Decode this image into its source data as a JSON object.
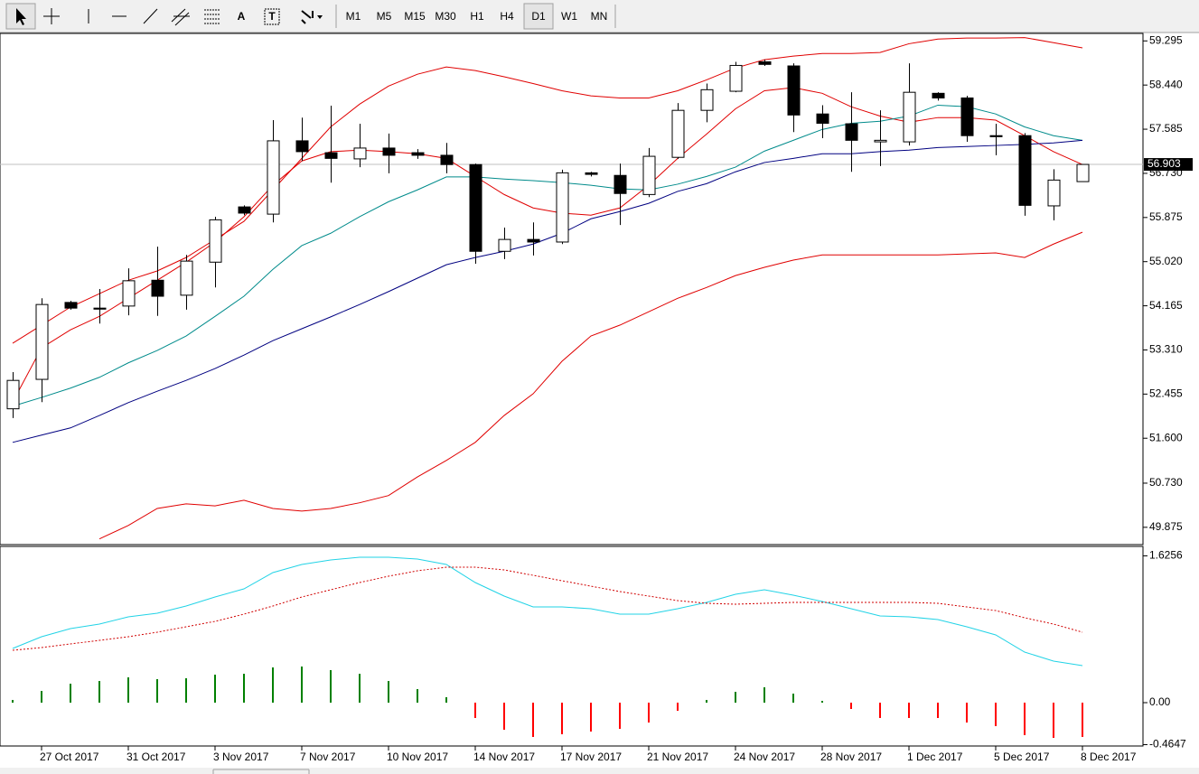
{
  "toolbar": {
    "text_tools": [
      "A",
      "T"
    ],
    "periods": [
      "M1",
      "M5",
      "M15",
      "M30",
      "H1",
      "H4",
      "D1",
      "W1",
      "MN"
    ],
    "active_period": "D1"
  },
  "chart_data": [
    {
      "type": "candlestick",
      "open": [
        52.17,
        52.74,
        54.23,
        54.12,
        54.16,
        54.66,
        54.37,
        55.01,
        56.08,
        55.94,
        57.36,
        57.13,
        57.01,
        57.22,
        57.13,
        57.08,
        56.9,
        55.22,
        55.45,
        55.4,
        56.74,
        56.69,
        56.32,
        57.04,
        57.95,
        58.32,
        58.89,
        58.81,
        57.88,
        57.69,
        57.34,
        57.34,
        58.28,
        58.19,
        57.46,
        57.46,
        56.1,
        56.57
      ],
      "high": [
        52.88,
        54.31,
        54.26,
        54.49,
        54.89,
        55.31,
        55.15,
        55.89,
        56.11,
        57.76,
        57.81,
        58.04,
        57.69,
        57.5,
        57.2,
        57.32,
        56.92,
        55.68,
        55.78,
        56.8,
        56.76,
        56.92,
        57.22,
        58.09,
        58.47,
        58.89,
        58.93,
        58.86,
        58.05,
        58.3,
        57.95,
        58.86,
        58.3,
        58.23,
        57.69,
        57.51,
        56.81,
        56.91
      ],
      "low": [
        51.99,
        52.3,
        54.09,
        53.82,
        53.98,
        53.97,
        54.09,
        54.52,
        55.92,
        55.78,
        56.97,
        56.55,
        56.85,
        56.73,
        57.01,
        56.73,
        54.98,
        55.07,
        55.14,
        55.36,
        56.67,
        55.73,
        56.27,
        57.01,
        57.72,
        58.3,
        58.81,
        57.53,
        57.41,
        56.76,
        56.87,
        57.27,
        58.14,
        57.34,
        57.08,
        55.91,
        55.82,
        56.57
      ],
      "close": [
        52.72,
        54.19,
        54.12,
        54.1,
        54.65,
        54.35,
        55.03,
        55.83,
        55.96,
        57.36,
        57.15,
        57.02,
        57.22,
        57.08,
        57.08,
        56.9,
        55.22,
        55.45,
        55.4,
        56.74,
        56.71,
        56.34,
        57.06,
        57.95,
        58.35,
        58.82,
        58.84,
        57.86,
        57.7,
        57.37,
        57.37,
        58.3,
        58.19,
        57.46,
        57.44,
        56.11,
        56.6,
        56.903
      ],
      "up_color": "#ffffff",
      "down_color": "#000000",
      "edge_color": "#000000",
      "overlays": [
        {
          "color": "#e00000",
          "values": [
            53.44,
            53.79,
            54.14,
            54.4,
            54.66,
            54.84,
            55.1,
            55.45,
            55.8,
            56.41,
            57.02,
            57.63,
            58.07,
            58.42,
            58.65,
            58.79,
            58.72,
            58.6,
            58.47,
            58.33,
            58.23,
            58.19,
            58.19,
            58.33,
            58.54,
            58.77,
            58.93,
            59.0,
            59.05,
            59.05,
            59.07,
            59.24,
            59.33,
            59.35,
            59.35,
            59.36,
            59.26,
            59.16
          ]
        },
        {
          "color": "#e00000",
          "values": [
            52.3,
            53.35,
            53.7,
            53.96,
            54.31,
            54.66,
            55.01,
            55.4,
            55.89,
            56.5,
            56.97,
            57.15,
            57.18,
            57.15,
            57.11,
            57.02,
            56.67,
            56.32,
            56.06,
            55.96,
            55.92,
            56.06,
            56.5,
            57.02,
            57.49,
            57.98,
            58.33,
            58.39,
            58.28,
            58.02,
            57.84,
            57.72,
            57.81,
            57.81,
            57.76,
            57.46,
            57.15,
            56.9
          ]
        },
        {
          "color": "#e00000",
          "values": [
            null,
            null,
            null,
            49.65,
            49.91,
            50.24,
            50.33,
            50.29,
            50.4,
            50.24,
            50.19,
            50.24,
            50.35,
            50.49,
            50.85,
            51.17,
            51.52,
            52.04,
            52.46,
            53.09,
            53.58,
            53.79,
            54.05,
            54.31,
            54.52,
            54.75,
            54.91,
            55.05,
            55.15,
            55.15,
            55.15,
            55.15,
            55.15,
            55.17,
            55.19,
            55.1,
            55.36,
            55.59
          ]
        },
        {
          "color": "#008b8b",
          "values": [
            52.22,
            52.39,
            52.57,
            52.78,
            53.06,
            53.3,
            53.58,
            53.96,
            54.35,
            54.87,
            55.33,
            55.57,
            55.89,
            56.18,
            56.41,
            56.66,
            56.66,
            56.62,
            56.59,
            56.55,
            56.5,
            56.43,
            56.41,
            56.52,
            56.67,
            56.85,
            57.16,
            57.37,
            57.58,
            57.7,
            57.74,
            57.84,
            58.05,
            58.02,
            57.88,
            57.63,
            57.46,
            57.37
          ]
        },
        {
          "color": "#000080",
          "values": [
            51.52,
            51.66,
            51.8,
            52.04,
            52.29,
            52.51,
            52.72,
            52.95,
            53.21,
            53.49,
            53.72,
            53.95,
            54.19,
            54.44,
            54.7,
            54.96,
            55.1,
            55.22,
            55.36,
            55.57,
            55.85,
            55.99,
            56.15,
            56.38,
            56.53,
            56.76,
            56.94,
            57.02,
            57.11,
            57.11,
            57.15,
            57.18,
            57.23,
            57.25,
            57.27,
            57.29,
            57.32,
            57.37
          ]
        }
      ],
      "current_price": 56.903,
      "current_line_color": "#c0c0c0",
      "ylim": [
        49.54,
        59.44
      ],
      "yticks": [
        59.295,
        {
          "value": 58.44,
          "label": "58.440"
        },
        57.585,
        {
          "value": 56.73,
          "label": "56.730"
        },
        55.875,
        {
          "value": 55.02,
          "label": "55.020"
        },
        54.165,
        {
          "value": 53.31,
          "label": "53.310"
        },
        52.455,
        {
          "value": 51.6,
          "label": "51.600"
        },
        {
          "value": 50.73,
          "label": "50.730"
        },
        49.875
      ]
    },
    {
      "type": "macd",
      "categories": [
        null,
        "27 Oct 2017",
        null,
        null,
        "31 Oct 2017",
        null,
        null,
        "3 Nov 2017",
        null,
        null,
        "7 Nov 2017",
        null,
        null,
        "10 Nov 2017",
        null,
        null,
        "14 Nov 2017",
        null,
        null,
        "17 Nov 2017",
        null,
        null,
        "21 Nov 2017",
        null,
        null,
        "24 Nov 2017",
        null,
        null,
        "28 Nov 2017",
        null,
        null,
        "1 Dec 2017",
        null,
        null,
        "5 Dec 2017",
        null,
        null,
        "8 Dec 2017"
      ],
      "histogram": [
        0.03,
        0.13,
        0.21,
        0.24,
        0.28,
        0.26,
        0.27,
        0.31,
        0.32,
        0.39,
        0.4,
        0.36,
        0.32,
        0.24,
        0.15,
        0.06,
        -0.17,
        -0.3,
        -0.38,
        -0.35,
        -0.32,
        -0.29,
        -0.22,
        -0.09,
        0.03,
        0.12,
        0.17,
        0.1,
        0.02,
        -0.07,
        -0.17,
        -0.17,
        -0.17,
        -0.22,
        -0.26,
        -0.36,
        -0.39,
        -0.38
      ],
      "positive_color": "#008000",
      "negative_color": "#ff0000",
      "series": [
        {
          "color": "#22d3e6",
          "style": "solid",
          "values": [
            0.6,
            0.73,
            0.82,
            0.87,
            0.95,
            0.99,
            1.07,
            1.17,
            1.26,
            1.44,
            1.53,
            1.58,
            1.61,
            1.61,
            1.59,
            1.53,
            1.33,
            1.18,
            1.06,
            1.06,
            1.04,
            0.98,
            0.98,
            1.04,
            1.11,
            1.2,
            1.25,
            1.19,
            1.12,
            1.04,
            0.96,
            0.95,
            0.92,
            0.84,
            0.75,
            0.56,
            0.46,
            0.41
          ]
        },
        {
          "color": "#d00000",
          "style": "dotted",
          "values": [
            0.58,
            0.61,
            0.65,
            0.69,
            0.73,
            0.78,
            0.84,
            0.9,
            0.98,
            1.07,
            1.17,
            1.25,
            1.33,
            1.4,
            1.46,
            1.5,
            1.5,
            1.47,
            1.41,
            1.35,
            1.29,
            1.23,
            1.18,
            1.13,
            1.1,
            1.09,
            1.1,
            1.11,
            1.11,
            1.11,
            1.11,
            1.11,
            1.1,
            1.06,
            1.02,
            0.94,
            0.87,
            0.78
          ]
        }
      ],
      "ylim": [
        -0.48,
        1.73
      ],
      "yticks": [
        1.6256,
        {
          "value": 0,
          "label": "0.00"
        },
        -0.4647
      ]
    }
  ]
}
